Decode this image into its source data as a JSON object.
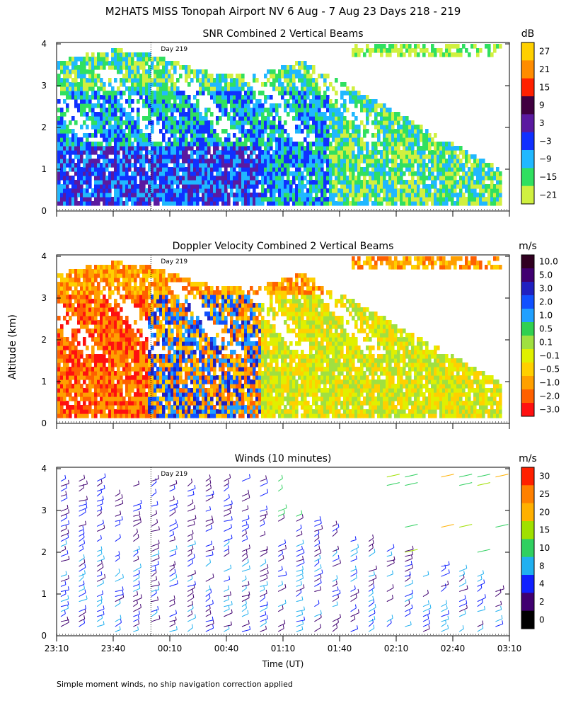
{
  "title": "M2HATS MISS Tonopah Airport NV   6 Aug -  7 Aug 23 Days 218 - 219",
  "ylabel": "Altitude (km)",
  "xlabel": "Time (UT)",
  "footnote": "Simple moment winds, no ship navigation correction applied",
  "day_marker": {
    "label": "Day 219",
    "time": "00:00"
  },
  "chart_data": [
    {
      "type": "heatmap",
      "title": "SNR Combined 2 Vertical Beams",
      "xlim": [
        "23:10",
        "03:10"
      ],
      "ylim": [
        0,
        4
      ],
      "colorbar": {
        "unit": "dB",
        "labels": [
          "27",
          "21",
          "15",
          "9",
          "3",
          "−3",
          "−9",
          "−15",
          "−21"
        ],
        "colors": [
          "#ffd000",
          "#ff8c00",
          "#ff2000",
          "#400040",
          "#5a1aa0",
          "#1030ff",
          "#20b8ff",
          "#30e060",
          "#d0f040"
        ]
      },
      "regime": "snr"
    },
    {
      "type": "heatmap",
      "title": "Doppler Velocity Combined 2 Vertical Beams",
      "xlim": [
        "23:10",
        "03:10"
      ],
      "ylim": [
        0,
        4
      ],
      "colorbar": {
        "unit": "m/s",
        "labels": [
          "10.0",
          "5.0",
          "3.0",
          "2.0",
          "1.0",
          "0.5",
          "0.1",
          "−0.1",
          "−0.5",
          "−1.0",
          "−2.0",
          "−3.0"
        ],
        "colors": [
          "#300020",
          "#400070",
          "#2020c0",
          "#1050ff",
          "#20a0ff",
          "#30d050",
          "#a0e040",
          "#e0f000",
          "#ffd000",
          "#ffa000",
          "#ff6000",
          "#ff1010"
        ]
      },
      "regime": "vel"
    },
    {
      "type": "scatter",
      "title": "Winds (10 minutes)",
      "xlim": [
        "23:10",
        "03:10"
      ],
      "ylim": [
        0,
        4
      ],
      "colorbar": {
        "unit": "m/s",
        "labels": [
          "30",
          "25",
          "20",
          "15",
          "10",
          "8",
          "4",
          "2",
          "0"
        ],
        "colors": [
          "#ff2000",
          "#ff8000",
          "#ffb000",
          "#a0e000",
          "#30d060",
          "#20b0f0",
          "#1020ff",
          "#400070",
          "#000000"
        ]
      },
      "regime": "wind"
    }
  ],
  "x_ticks": [
    "23:10",
    "23:40",
    "00:10",
    "00:40",
    "01:10",
    "01:40",
    "02:10",
    "02:40",
    "03:10"
  ],
  "y_ticks": [
    "0",
    "1",
    "2",
    "3",
    "4"
  ],
  "wind_colors": [
    "#400070",
    "#1020ff",
    "#20b0f0",
    "#30d060",
    "#a0e000",
    "#ffb000",
    "#ff2000"
  ]
}
